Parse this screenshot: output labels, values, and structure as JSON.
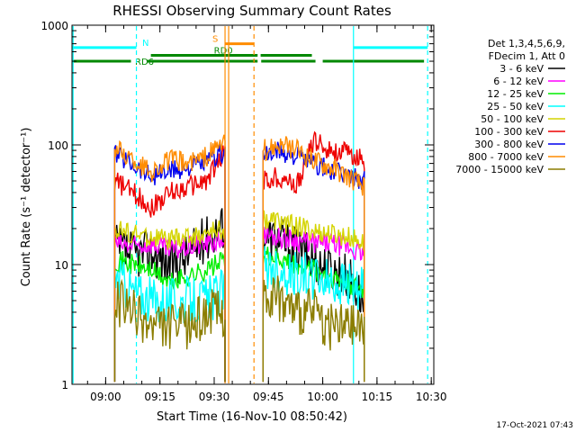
{
  "chart_data": {
    "type": "line",
    "title": "RHESSI Observing Summary Count Rates",
    "xlabel": "Start Time (16-Nov-10 08:50:42)",
    "ylabel": "Count Rate (s⁻¹ detector⁻¹)",
    "y_scale": "log",
    "ylim": [
      1,
      1000
    ],
    "xlim": [
      "08:50:42",
      "10:30:42"
    ],
    "x_ticks": [
      "09:00",
      "09:15",
      "09:30",
      "09:45",
      "10:00",
      "10:15",
      "10:30"
    ],
    "y_ticks": [
      "1",
      "10",
      "100",
      "1000"
    ],
    "footer": "17-Oct-2021 07:43",
    "legend": {
      "placement": "right",
      "header": [
        "Det 1,3,4,5,6,9,",
        "FDecim 1, Att 0"
      ],
      "entries": [
        {
          "label": "3 - 6 keV",
          "color": "#000000"
        },
        {
          "label": "6 - 12 keV",
          "color": "#ff00ff"
        },
        {
          "label": "12 - 25 keV",
          "color": "#00ee00"
        },
        {
          "label": "25 - 50 keV",
          "color": "#00ffff"
        },
        {
          "label": "50 - 100 keV",
          "color": "#d4d400"
        },
        {
          "label": "100 - 300 keV",
          "color": "#ee0000"
        },
        {
          "label": "300 - 800 keV",
          "color": "#0000ee"
        },
        {
          "label": "800 - 7000 keV",
          "color": "#ff8c00"
        },
        {
          "label": "7000 - 15000 keV",
          "color": "#8b7d00"
        }
      ]
    },
    "flag_bars": [
      {
        "label": "N",
        "color": "#00ffff",
        "level": 650,
        "segments": [
          [
            "08:50:42",
            "09:08:30"
          ],
          [
            "10:08:30",
            "10:29:00"
          ]
        ]
      },
      {
        "label": "S",
        "color": "#ff8c00",
        "level": 700,
        "segments": [
          [
            "09:33:00",
            "09:41:00"
          ]
        ]
      },
      {
        "label": "RD0",
        "color": "#008800",
        "level": 560,
        "segments": [
          [
            "09:12:30",
            "09:42:00"
          ],
          [
            "09:42:50",
            "09:57:00"
          ]
        ]
      },
      {
        "label": "RD6",
        "color": "#008800",
        "level": 500,
        "segments": [
          [
            "08:50:42",
            "09:07:00"
          ],
          [
            "09:11:30",
            "09:42:00"
          ],
          [
            "09:43:00",
            "09:58:00"
          ],
          [
            "10:00:00",
            "10:28:00"
          ]
        ]
      }
    ],
    "vertical_lines": [
      {
        "time": "08:51:00",
        "color": "#00ffff",
        "style": "solid"
      },
      {
        "time": "09:08:30",
        "color": "#00ffff",
        "style": "dashed"
      },
      {
        "time": "09:33:00",
        "color": "#ff8c00",
        "style": "solid"
      },
      {
        "time": "09:34:00",
        "color": "#ff8c00",
        "style": "solid"
      },
      {
        "time": "09:41:00",
        "color": "#ff8c00",
        "style": "dashed"
      },
      {
        "time": "10:08:30",
        "color": "#00ffff",
        "style": "solid"
      },
      {
        "time": "10:29:00",
        "color": "#00ffff",
        "style": "dashed"
      }
    ],
    "segments": [
      {
        "start": "09:02:30",
        "end": "09:33:00"
      },
      {
        "start": "09:43:30",
        "end": "10:11:30"
      }
    ],
    "series": [
      {
        "color": "#000000",
        "values": [
          [
            14,
            12,
            13,
            10,
            12,
            17,
            22
          ],
          [
            17,
            16,
            13,
            11,
            9,
            8,
            5
          ]
        ]
      },
      {
        "color": "#ff00ff",
        "values": [
          [
            15,
            14,
            15,
            13,
            14,
            15,
            16
          ],
          [
            18,
            17,
            16,
            15,
            15,
            14,
            12
          ]
        ]
      },
      {
        "color": "#00ee00",
        "values": [
          [
            11,
            10,
            9,
            7,
            8,
            9,
            11
          ],
          [
            12,
            11,
            10,
            9,
            8,
            7,
            6
          ]
        ]
      },
      {
        "color": "#00ffff",
        "values": [
          [
            8,
            6,
            5,
            5,
            5,
            5,
            6
          ],
          [
            10,
            9,
            8,
            8,
            7,
            7,
            6
          ]
        ]
      },
      {
        "color": "#d4d400",
        "values": [
          [
            20,
            18,
            17,
            16,
            17,
            18,
            20
          ],
          [
            24,
            23,
            21,
            19,
            18,
            17,
            15
          ]
        ]
      },
      {
        "color": "#ee0000",
        "values": [
          [
            50,
            40,
            30,
            40,
            45,
            50,
            90
          ],
          [
            50,
            55,
            45,
            110,
            90,
            85,
            75
          ]
        ]
      },
      {
        "color": "#0000ee",
        "values": [
          [
            85,
            70,
            55,
            60,
            65,
            70,
            90
          ],
          [
            80,
            90,
            80,
            70,
            60,
            55,
            50
          ]
        ]
      },
      {
        "color": "#ff8c00",
        "values": [
          [
            95,
            75,
            60,
            75,
            70,
            80,
            110
          ],
          [
            90,
            100,
            90,
            75,
            65,
            55,
            45
          ]
        ]
      },
      {
        "color": "#8b7d00",
        "values": [
          [
            5,
            4,
            3,
            3,
            3,
            4,
            4
          ],
          [
            6,
            5,
            4,
            4,
            3,
            3,
            3
          ]
        ]
      }
    ]
  }
}
